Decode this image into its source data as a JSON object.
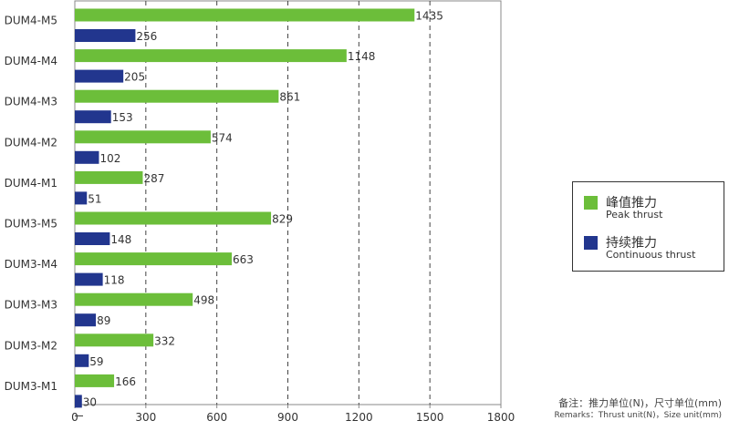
{
  "chart_data": {
    "type": "bar",
    "orientation": "horizontal",
    "categories": [
      "DUM4-M5",
      "DUM4-M4",
      "DUM4-M3",
      "DUM4-M2",
      "DUM4-M1",
      "DUM3-M5",
      "DUM3-M4",
      "DUM3-M3",
      "DUM3-M2",
      "DUM3-M1"
    ],
    "series": [
      {
        "name": "峰值推力 Peak thrust",
        "color": "#6cbe3a",
        "values": [
          1435,
          1148,
          861,
          574,
          287,
          829,
          663,
          498,
          332,
          166
        ]
      },
      {
        "name": "持续推力 Continuous thrust",
        "color": "#22368e",
        "values": [
          256,
          205,
          153,
          102,
          51,
          148,
          118,
          89,
          59,
          30
        ]
      }
    ],
    "xlim": [
      0,
      1800
    ],
    "xticks": [
      0,
      300,
      600,
      900,
      1200,
      1500,
      1800
    ],
    "grid": "vertical dashed",
    "legend_position": "right"
  },
  "legend": {
    "peak_cn": "峰值推力",
    "peak_en": "Peak thrust",
    "continuous_cn": "持续推力",
    "continuous_en": "Continuous thrust"
  },
  "remarks": {
    "line1": "备注：推力单位(N)，尺寸单位(mm)",
    "line2": "Remarks：Thrust unit(N)，Size unit(mm)"
  }
}
